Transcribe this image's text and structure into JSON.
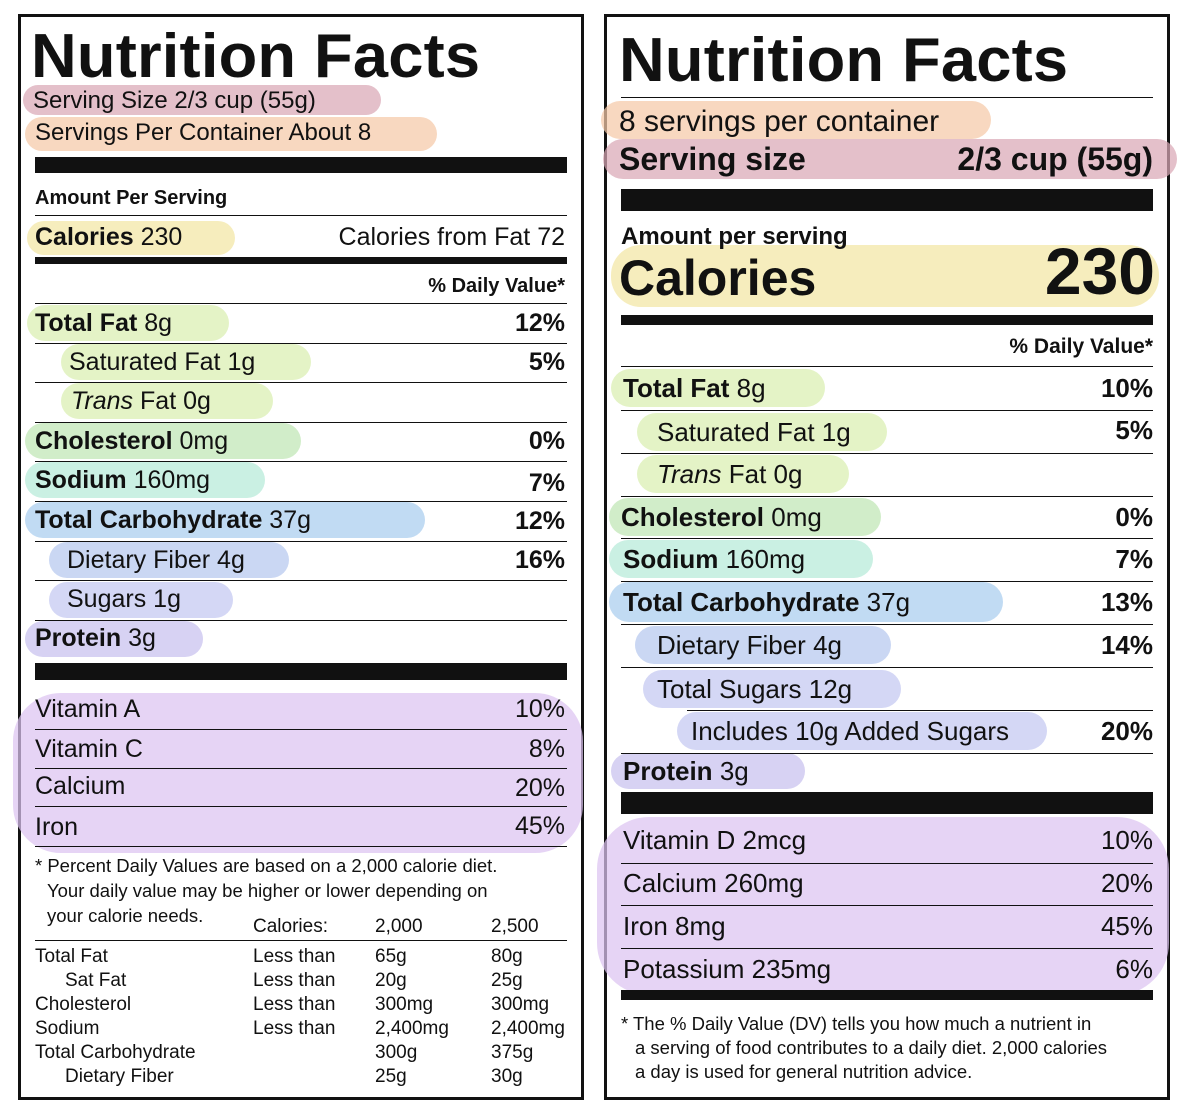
{
  "left": {
    "title": "Nutrition Facts",
    "serving_size": "Serving Size 2/3 cup (55g)",
    "servings_per_container": "Servings Per Container About 8",
    "amount_per_serving": "Amount Per Serving",
    "calories_label": "Calories",
    "calories_value": "230",
    "calories_from_fat": "Calories from Fat 72",
    "daily_value_header": "% Daily Value*",
    "nutrients": [
      {
        "label": "Total Fat",
        "amount": "8g",
        "dv": "12%"
      },
      {
        "label": "Saturated Fat",
        "amount": "1g",
        "dv": "5%"
      },
      {
        "label": "Trans",
        "amount": "Fat 0g",
        "dv": ""
      },
      {
        "label": "Cholesterol",
        "amount": "0mg",
        "dv": "0%"
      },
      {
        "label": "Sodium",
        "amount": "160mg",
        "dv": "7%"
      },
      {
        "label": "Total Carbohydrate",
        "amount": "37g",
        "dv": "12%"
      },
      {
        "label": "Dietary Fiber",
        "amount": "4g",
        "dv": "16%"
      },
      {
        "label": "Sugars",
        "amount": "1g",
        "dv": ""
      },
      {
        "label": "Protein",
        "amount": "3g",
        "dv": ""
      }
    ],
    "vitamins": [
      {
        "label": "Vitamin A",
        "dv": "10%"
      },
      {
        "label": "Vitamin C",
        "dv": "8%"
      },
      {
        "label": "Calcium",
        "dv": "20%"
      },
      {
        "label": "Iron",
        "dv": "45%"
      }
    ],
    "footnote": [
      "* Percent Daily Values are based on a 2,000 calorie diet.",
      "Your daily value may be higher or lower depending on",
      "your calorie needs."
    ],
    "footnote_table": {
      "header": [
        "Calories:",
        "2,000",
        "2,500"
      ],
      "rows": [
        [
          "Total Fat",
          "Less than",
          "65g",
          "80g"
        ],
        [
          "Sat Fat",
          "Less than",
          "20g",
          "25g"
        ],
        [
          "Cholesterol",
          "Less than",
          "300mg",
          "300mg"
        ],
        [
          "Sodium",
          "Less than",
          "2,400mg",
          "2,400mg"
        ],
        [
          "Total Carbohydrate",
          "",
          "300g",
          "375g"
        ],
        [
          "Dietary Fiber",
          "",
          "25g",
          "30g"
        ]
      ]
    }
  },
  "right": {
    "title": "Nutrition Facts",
    "servings_per_container": "8 servings per container",
    "serving_size_label": "Serving size",
    "serving_size_value": "2/3 cup (55g)",
    "amount_per_serving": "Amount per serving",
    "calories_label": "Calories",
    "calories_value": "230",
    "daily_value_header": "% Daily Value*",
    "nutrients": [
      {
        "label": "Total Fat",
        "amount": "8g",
        "dv": "10%"
      },
      {
        "label": "Saturated Fat",
        "amount": "1g",
        "dv": "5%"
      },
      {
        "label": "Trans",
        "amount": "Fat 0g",
        "dv": ""
      },
      {
        "label": "Cholesterol",
        "amount": "0mg",
        "dv": "0%"
      },
      {
        "label": "Sodium",
        "amount": "160mg",
        "dv": "7%"
      },
      {
        "label": "Total Carbohydrate",
        "amount": "37g",
        "dv": "13%"
      },
      {
        "label": "Dietary Fiber",
        "amount": "4g",
        "dv": "14%"
      },
      {
        "label": "Total Sugars",
        "amount": "12g",
        "dv": ""
      },
      {
        "label": "Includes 10g Added Sugars",
        "amount": "",
        "dv": "20%"
      },
      {
        "label": "Protein",
        "amount": "3g",
        "dv": ""
      }
    ],
    "vitamins": [
      {
        "label": "Vitamin D 2mcg",
        "dv": "10%"
      },
      {
        "label": "Calcium 260mg",
        "dv": "20%"
      },
      {
        "label": "Iron 8mg",
        "dv": "45%"
      },
      {
        "label": "Potassium 235mg",
        "dv": "6%"
      }
    ],
    "footnote": [
      "* The % Daily Value (DV) tells you how much a nutrient in",
      "a serving of food contributes to a daily diet. 2,000 calories",
      "a day is used for general nutrition advice."
    ]
  },
  "highlight_colors": {
    "serving_size": "#d9a7b6",
    "servings_per_container": "#f5c9a8",
    "calories": "#f3e6a4",
    "fat": "#d9eeb0",
    "cholesterol": "#bfe6b4",
    "sodium": "#b5ead8",
    "carbohydrate": "#a9cdef",
    "sugars": "#c3c8f1",
    "protein": "#c8c0ef",
    "vitamins": "#dcc4f1"
  }
}
